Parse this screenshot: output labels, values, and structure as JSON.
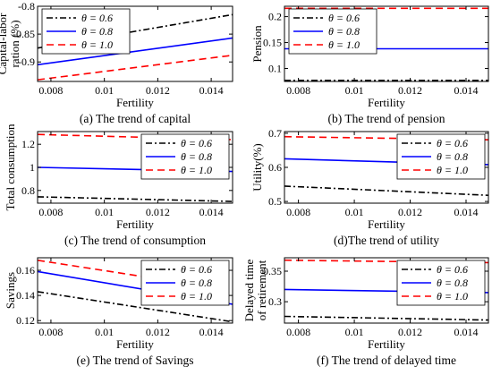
{
  "legend": {
    "entries": [
      "θ = 0.6",
      "θ = 0.8",
      "θ = 1.0"
    ],
    "styles": [
      {
        "color": "#000000",
        "dash": "7,3,2,3"
      },
      {
        "color": "#0000ff",
        "dash": ""
      },
      {
        "color": "#ff0000",
        "dash": "8,5"
      }
    ]
  },
  "chart_data": [
    {
      "type": "line",
      "caption": "(a) The trend of capital",
      "xlabel": "Fertility",
      "ylabel": [
        "Capital-labor",
        "ration (%)"
      ],
      "xlim": [
        0.0075,
        0.0148
      ],
      "ylim": [
        -0.935,
        -0.8
      ],
      "xticks": [
        "0.008",
        "0.01",
        "0.012",
        "0.014"
      ],
      "xtick_values": [
        0.008,
        0.01,
        0.012,
        0.014
      ],
      "yticks": [
        "-0.8",
        "-0.85",
        "-0.9"
      ],
      "ytick_values": [
        -0.8,
        -0.85,
        -0.9
      ],
      "legend_position": "top-left",
      "x": [
        0.0075,
        0.0148
      ],
      "series": [
        {
          "name": "θ = 0.6",
          "values": [
            -0.875,
            -0.815
          ]
        },
        {
          "name": "θ = 0.8",
          "values": [
            -0.905,
            -0.857
          ]
        },
        {
          "name": "θ = 1.0",
          "values": [
            -0.932,
            -0.888
          ]
        }
      ]
    },
    {
      "type": "line",
      "caption": "(b) The trend of pension",
      "xlabel": "Fertility",
      "ylabel": [
        "Pension"
      ],
      "xlim": [
        0.0075,
        0.0148
      ],
      "ylim": [
        0.075,
        0.22
      ],
      "xticks": [
        "0.008",
        "0.01",
        "0.012",
        "0.014"
      ],
      "xtick_values": [
        0.008,
        0.01,
        0.012,
        0.014
      ],
      "yticks": [
        "0.2",
        "0.15",
        "0.1"
      ],
      "ytick_values": [
        0.2,
        0.15,
        0.1
      ],
      "legend_position": "top-left",
      "x": [
        0.0075,
        0.0148
      ],
      "series": [
        {
          "name": "θ = 0.6",
          "values": [
            0.077,
            0.077
          ]
        },
        {
          "name": "θ = 0.8",
          "values": [
            0.138,
            0.138
          ]
        },
        {
          "name": "θ = 1.0",
          "values": [
            0.216,
            0.216
          ]
        }
      ]
    },
    {
      "type": "line",
      "caption": "(c) The trend of consumption",
      "xlabel": "Fertility",
      "ylabel": [
        "Total consumption"
      ],
      "xlim": [
        0.0075,
        0.0148
      ],
      "ylim": [
        0.69,
        1.31
      ],
      "xticks": [
        "0.008",
        "0.01",
        "0.012",
        "0.014"
      ],
      "xtick_values": [
        0.008,
        0.01,
        0.012,
        0.014
      ],
      "yticks": [
        "1.2",
        "1",
        "0.8"
      ],
      "ytick_values": [
        1.2,
        1.0,
        0.8
      ],
      "legend_position": "top-right",
      "x": [
        0.0075,
        0.0148
      ],
      "series": [
        {
          "name": "θ = 0.6",
          "values": [
            0.745,
            0.705
          ]
        },
        {
          "name": "θ = 0.8",
          "values": [
            1.0,
            0.965
          ]
        },
        {
          "name": "θ = 1.0",
          "values": [
            1.285,
            1.24
          ]
        }
      ]
    },
    {
      "type": "line",
      "caption": "(d)The trend of utility",
      "xlabel": "Fertility",
      "ylabel": [
        "Utility(%)"
      ],
      "xlim": [
        0.0075,
        0.0148
      ],
      "ylim": [
        0.495,
        0.705
      ],
      "xticks": [
        "0.008",
        "0.01",
        "0.012",
        "0.014"
      ],
      "xtick_values": [
        0.008,
        0.01,
        0.012,
        0.014
      ],
      "yticks": [
        "0.7",
        "0.6",
        "0.5"
      ],
      "ytick_values": [
        0.7,
        0.6,
        0.5
      ],
      "legend_position": "top-right",
      "x": [
        0.0075,
        0.0148
      ],
      "series": [
        {
          "name": "θ = 0.6",
          "values": [
            0.545,
            0.518
          ]
        },
        {
          "name": "θ = 0.8",
          "values": [
            0.625,
            0.608
          ]
        },
        {
          "name": "θ = 1.0",
          "values": [
            0.69,
            0.681
          ]
        }
      ]
    },
    {
      "type": "line",
      "caption": "(e) The trend of Savings",
      "xlabel": "Fertility",
      "ylabel": [
        "Savings"
      ],
      "xlim": [
        0.0075,
        0.0148
      ],
      "ylim": [
        0.118,
        0.17
      ],
      "xticks": [
        "0.008",
        "0.01",
        "0.012",
        "0.014"
      ],
      "xtick_values": [
        0.008,
        0.01,
        0.012,
        0.014
      ],
      "yticks": [
        "0.16",
        "0.14",
        "0.12"
      ],
      "ytick_values": [
        0.16,
        0.14,
        0.12
      ],
      "legend_position": "top-right",
      "x": [
        0.0075,
        0.0148
      ],
      "series": [
        {
          "name": "θ = 0.6",
          "values": [
            0.143,
            0.119
          ]
        },
        {
          "name": "θ = 0.8",
          "values": [
            0.159,
            0.133
          ]
        },
        {
          "name": "θ = 1.0",
          "values": [
            0.168,
            0.144
          ]
        }
      ]
    },
    {
      "type": "line",
      "caption": "(f) The trend of delayed time",
      "xlabel": "Fertility",
      "ylabel": [
        "Delayed time",
        "of retirement"
      ],
      "xlim": [
        0.0075,
        0.0148
      ],
      "ylim": [
        0.265,
        0.372
      ],
      "xticks": [
        "0.008",
        "0.01",
        "0.012",
        "0.014"
      ],
      "xtick_values": [
        0.008,
        0.01,
        0.012,
        0.014
      ],
      "yticks": [
        "0.35",
        "0.3"
      ],
      "ytick_values": [
        0.35,
        0.3
      ],
      "legend_position": "top-right",
      "x": [
        0.0075,
        0.0148
      ],
      "series": [
        {
          "name": "θ = 0.6",
          "values": [
            0.276,
            0.27
          ]
        },
        {
          "name": "θ = 0.8",
          "values": [
            0.32,
            0.315
          ]
        },
        {
          "name": "θ = 1.0",
          "values": [
            0.368,
            0.364
          ]
        }
      ]
    }
  ]
}
